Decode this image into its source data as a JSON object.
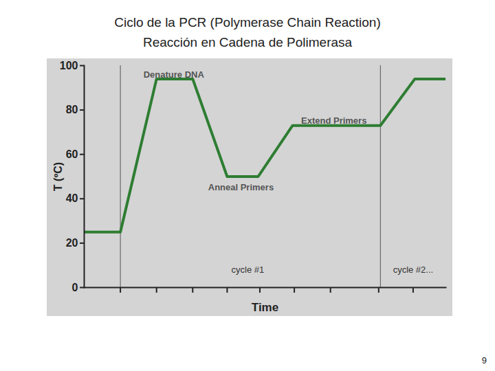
{
  "chart_data": {
    "type": "line",
    "title": "Ciclo de la PCR (Polymerase Chain Reaction)",
    "subtitle": "Reacción en Cadena de Polimerasa",
    "x_label": "Time",
    "y_label": "T (ºC)",
    "x": [
      0,
      10.5,
      21,
      31.5,
      41.5,
      50.5,
      60.5,
      86,
      96,
      105
    ],
    "values": [
      25,
      25,
      94,
      94,
      50,
      50,
      73,
      73,
      94,
      94
    ],
    "color": "#2e7d32",
    "xlim": [
      0,
      105
    ],
    "xticks": [
      10.5,
      21,
      31.5,
      41.5,
      51,
      61,
      71.5,
      85.5,
      95.5
    ],
    "ylim": [
      0,
      100
    ],
    "yticks": [
      0,
      20,
      40,
      60,
      80,
      100
    ],
    "tick_labels": "y",
    "cycle_lines": [
      10.5,
      86
    ],
    "annotations": [
      {
        "text": "Denature DNA",
        "x": 26,
        "y": 96
      },
      {
        "text": "Anneal Primers",
        "x": 45.5,
        "y": 45
      },
      {
        "text": "Extend Primers",
        "x": 72.5,
        "y": 75
      },
      {
        "text": "cycle #1",
        "x": 47.5,
        "y": 8
      },
      {
        "text": "cycle #2...",
        "x": 95.5,
        "y": 8
      }
    ],
    "page_number": "9"
  }
}
